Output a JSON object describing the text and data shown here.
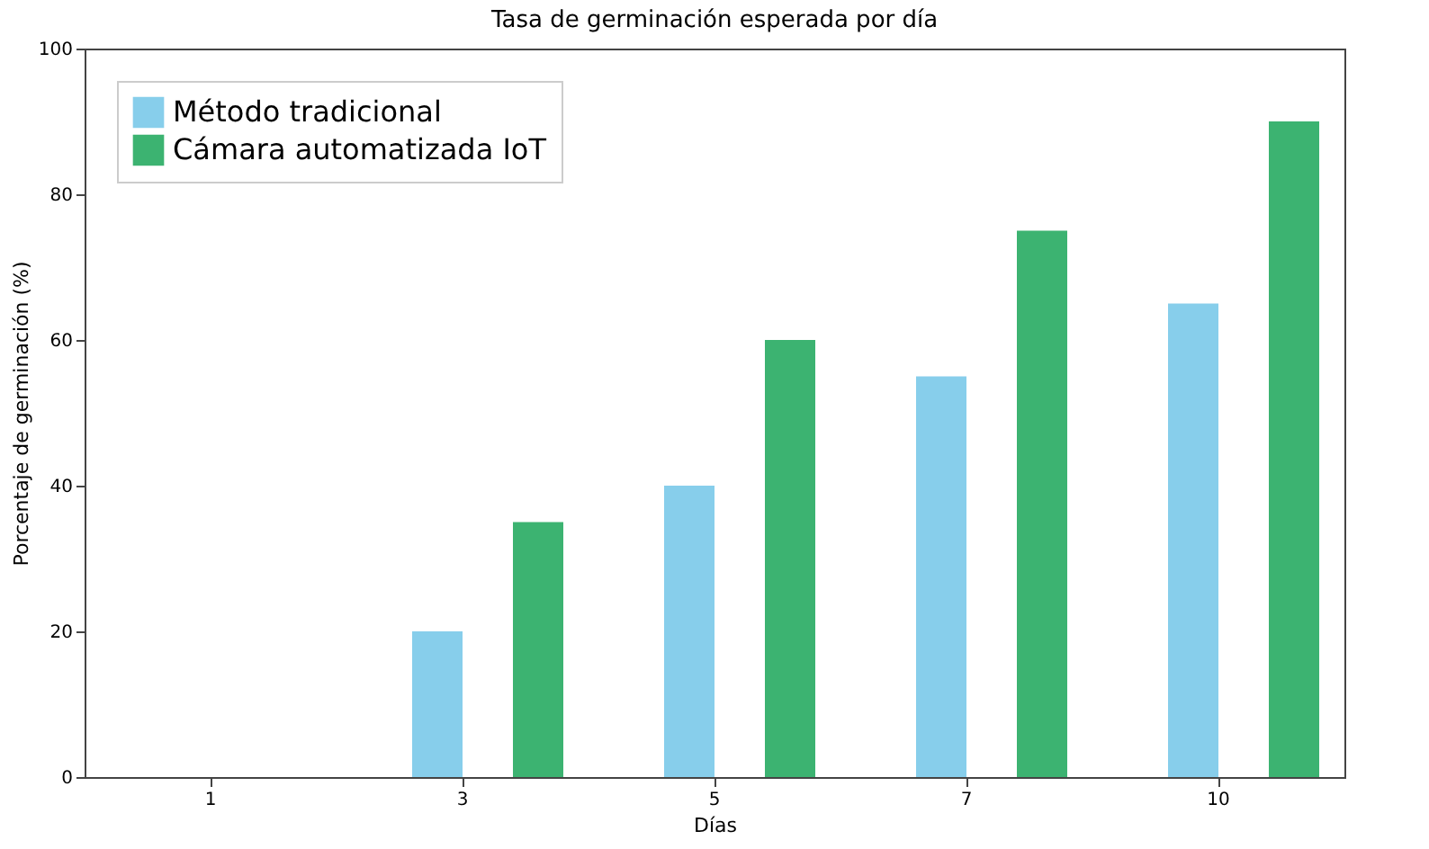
{
  "chart_data": {
    "type": "bar",
    "title": "Tasa de germinación esperada por día",
    "xlabel": "Días",
    "ylabel": "Porcentaje de germinación (%)",
    "categories": [
      "1",
      "3",
      "5",
      "7",
      "10"
    ],
    "series": [
      {
        "name": "Método tradicional",
        "color": "#87ceeb",
        "values": [
          0,
          20,
          40,
          55,
          65
        ]
      },
      {
        "name": "Cámara automatizada IoT",
        "color": "#3cb371",
        "values": [
          0,
          35,
          60,
          75,
          90
        ]
      }
    ],
    "ylim": [
      0,
      100
    ],
    "yticks": [
      0,
      20,
      40,
      60,
      80,
      100
    ],
    "grid": false,
    "legend": "top left"
  }
}
